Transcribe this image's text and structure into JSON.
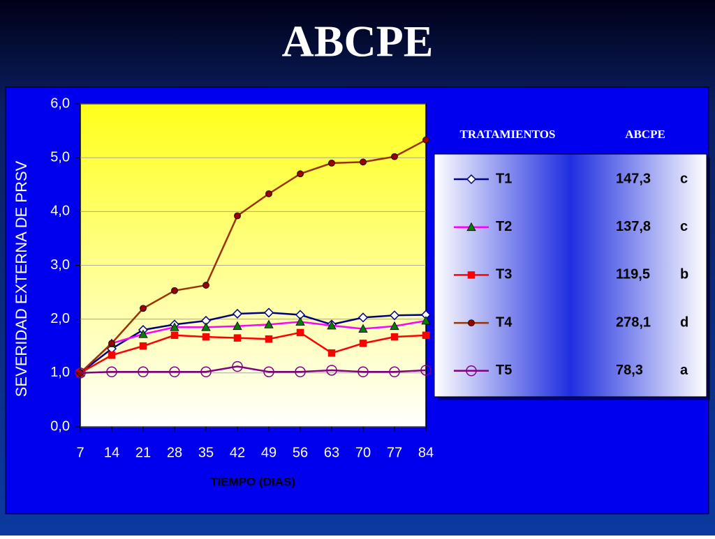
{
  "chart_data": {
    "type": "line",
    "title": "ABCPE",
    "xlabel": "TIEMPO (DIAS)",
    "ylabel": "SEVERIDAD EXTERNA DE PRSV",
    "x": [
      7,
      14,
      21,
      28,
      35,
      42,
      49,
      56,
      63,
      70,
      77,
      84
    ],
    "xlim": [
      7,
      84
    ],
    "xticks": [
      7,
      14,
      21,
      28,
      35,
      42,
      49,
      56,
      63,
      70,
      77,
      84
    ],
    "ylim": [
      0,
      6
    ],
    "yticks": [
      {
        "value": 0,
        "label": "0,0"
      },
      {
        "value": 1,
        "label": "1,0"
      },
      {
        "value": 2,
        "label": "2,0"
      },
      {
        "value": 3,
        "label": "3,0"
      },
      {
        "value": 4,
        "label": "4,0"
      },
      {
        "value": 5,
        "label": "5,0"
      },
      {
        "value": 6,
        "label": "6,0"
      }
    ],
    "grid": true,
    "legend_headers": [
      "TRATAMIENTOS",
      "ABCPE"
    ],
    "series": [
      {
        "name": "T1",
        "color": "#000080",
        "marker": "diamond",
        "marker_color": "#ffffff",
        "abcpe": "147,3",
        "group": "c",
        "values": [
          1.0,
          1.45,
          1.8,
          1.9,
          1.97,
          2.1,
          2.12,
          2.08,
          1.9,
          2.03,
          2.07,
          2.08
        ]
      },
      {
        "name": "T2",
        "color": "#ff00ff",
        "marker": "triangle",
        "marker_color": "#008000",
        "abcpe": "137,8",
        "group": "c",
        "values": [
          1.0,
          1.55,
          1.72,
          1.85,
          1.85,
          1.87,
          1.9,
          1.95,
          1.88,
          1.82,
          1.87,
          1.97
        ]
      },
      {
        "name": "T3",
        "color": "#ff0000",
        "marker": "square",
        "marker_color": "#ff0000",
        "abcpe": "119,5",
        "group": "b",
        "values": [
          1.0,
          1.33,
          1.5,
          1.7,
          1.67,
          1.65,
          1.63,
          1.75,
          1.37,
          1.55,
          1.67,
          1.7
        ]
      },
      {
        "name": "T4",
        "color": "#993300",
        "marker": "circle",
        "marker_color": "#990000",
        "abcpe": "278,1",
        "group": "d",
        "values": [
          1.0,
          1.55,
          2.2,
          2.53,
          2.63,
          3.92,
          4.33,
          4.7,
          4.9,
          4.92,
          5.02,
          5.33
        ]
      },
      {
        "name": "T5",
        "color": "#800080",
        "marker": "open-circle",
        "marker_color": "#ffffff",
        "abcpe": "78,3",
        "group": "a",
        "values": [
          1.0,
          1.02,
          1.02,
          1.02,
          1.02,
          1.12,
          1.02,
          1.02,
          1.05,
          1.02,
          1.02,
          1.05
        ]
      }
    ]
  }
}
